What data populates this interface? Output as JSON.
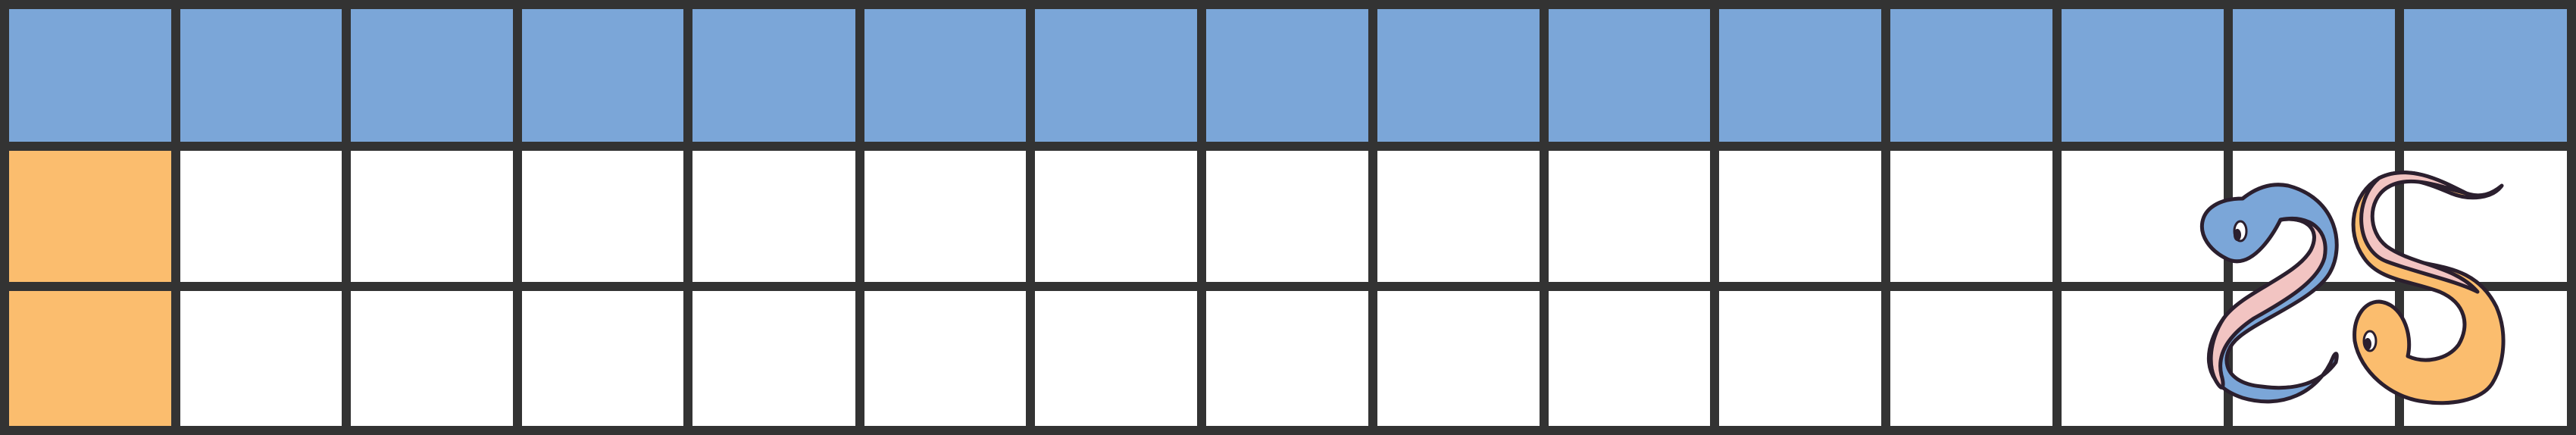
{
  "board": {
    "columns": 15,
    "rows": 3,
    "colors": {
      "grid_line": "#333333",
      "header_row": "#7BA6D8",
      "first_column": "#FBBD6E",
      "empty_cell": "#FFFFFF",
      "blue_snake": "#7BA6D8",
      "orange_snake": "#FBBD6E",
      "snake_belly": "#F2C4C2",
      "snake_outline": "#2B1F2E"
    },
    "cells": [
      [
        "blue",
        "blue",
        "blue",
        "blue",
        "blue",
        "blue",
        "blue",
        "blue",
        "blue",
        "blue",
        "blue",
        "blue",
        "blue",
        "blue",
        "blue"
      ],
      [
        "orange",
        "white",
        "white",
        "white",
        "white",
        "white",
        "white",
        "white",
        "white",
        "white",
        "white",
        "white",
        "white",
        "white",
        "white"
      ],
      [
        "orange",
        "white",
        "white",
        "white",
        "white",
        "white",
        "white",
        "white",
        "white",
        "white",
        "white",
        "white",
        "white",
        "white",
        "white"
      ]
    ]
  },
  "pieces": [
    {
      "name": "blue-snake-icon",
      "color": "blue"
    },
    {
      "name": "orange-snake-icon",
      "color": "orange"
    }
  ]
}
